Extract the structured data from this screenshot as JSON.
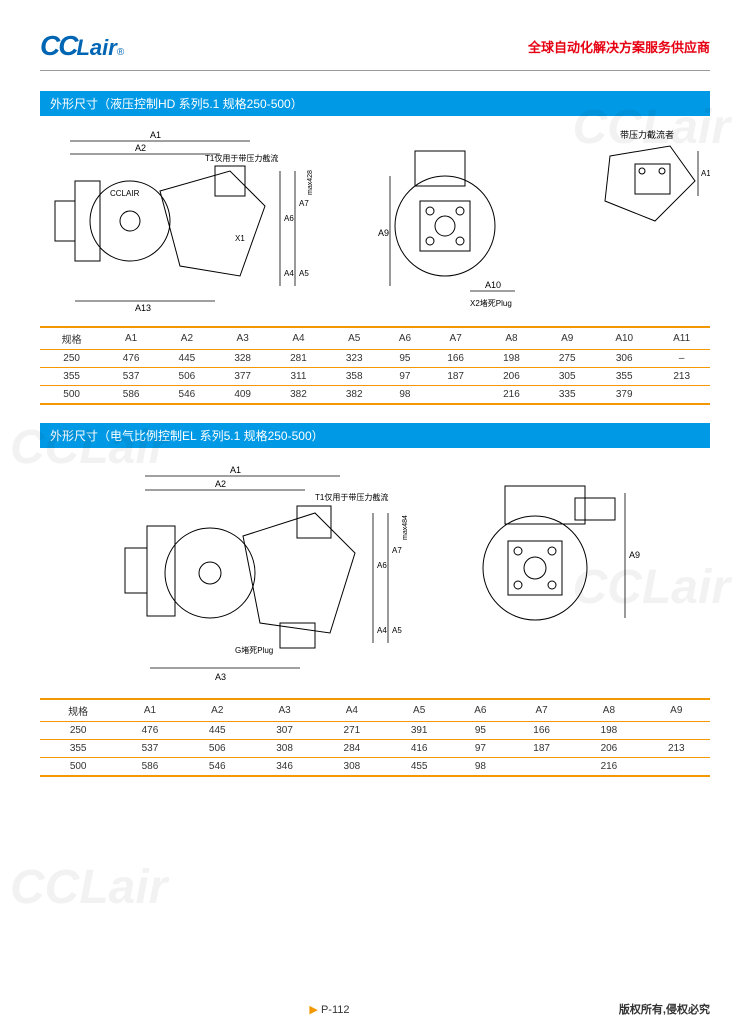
{
  "header": {
    "logo_text": "CCLair",
    "logo_reg": "®",
    "tagline": "全球自动化解决方案服务供应商"
  },
  "section1": {
    "title": "外形尺寸（液压控制HD  系列5.1  规格250-500）",
    "diagram_notes": {
      "note1": "T1仅用于带压力截流",
      "note2": "带压力截流者",
      "note3": "X2堵死Plug",
      "brand": "CCLAIR"
    },
    "table": {
      "columns": [
        "规格",
        "A1",
        "A2",
        "A3",
        "A4",
        "A5",
        "A6",
        "A7",
        "A8",
        "A9",
        "A10",
        "A11"
      ],
      "rows": [
        [
          "250",
          "476",
          "445",
          "328",
          "281",
          "323",
          "95",
          "166",
          "198",
          "275",
          "306",
          "–"
        ],
        [
          "355",
          "537",
          "506",
          "377",
          "311",
          "358",
          "97",
          "187",
          "206",
          "305",
          "355",
          "213"
        ],
        [
          "500",
          "586",
          "546",
          "409",
          "382",
          "382",
          "98",
          "",
          "216",
          "335",
          "379",
          ""
        ]
      ]
    }
  },
  "section2": {
    "title": "外形尺寸（电气比例控制EL  系列5.1  规格250-500）",
    "diagram_notes": {
      "note1": "T1仅用于带压力截流",
      "note2": "G堵死Plug"
    },
    "table": {
      "columns": [
        "规格",
        "A1",
        "A2",
        "A3",
        "A4",
        "A5",
        "A6",
        "A7",
        "A8",
        "A9"
      ],
      "rows": [
        [
          "250",
          "476",
          "445",
          "307",
          "271",
          "391",
          "95",
          "166",
          "198",
          ""
        ],
        [
          "355",
          "537",
          "506",
          "308",
          "284",
          "416",
          "97",
          "187",
          "206",
          "213"
        ],
        [
          "500",
          "586",
          "546",
          "346",
          "308",
          "455",
          "98",
          "",
          "216",
          ""
        ]
      ]
    }
  },
  "footer": {
    "page": "P-112",
    "copyright": "版权所有,侵权必究"
  },
  "colors": {
    "brand_blue": "#0066b3",
    "header_blue": "#0099e5",
    "accent_red": "#e60012",
    "table_border": "#f39800"
  }
}
